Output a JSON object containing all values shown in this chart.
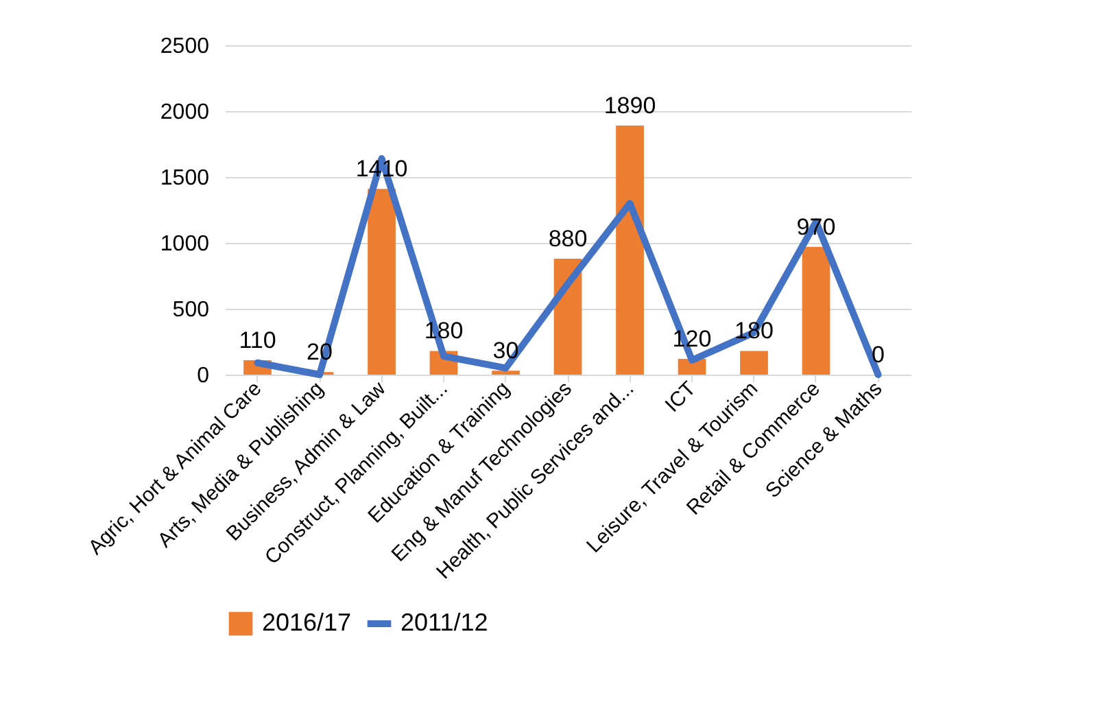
{
  "chart_data": {
    "type": "bar",
    "categories": [
      "Agric, Hort & Animal Care",
      "Arts, Media & Publishing",
      "Business, Admin & Law",
      "Construct, Planning,  Built...",
      "Education & Training",
      "Eng & Manuf Technologies",
      "Health, Public Services and...",
      "ICT",
      "Leisure, Travel & Tourism",
      "Retail & Commerce",
      "Science & Maths"
    ],
    "series": [
      {
        "name": "2016/17",
        "color": "#ed7d31",
        "values": [
          110,
          20,
          1410,
          180,
          30,
          880,
          1890,
          120,
          180,
          970,
          0
        ],
        "value_labels": [
          "110",
          "20",
          "1410",
          "180",
          "30",
          "880",
          "1890",
          "120",
          "180",
          "970",
          "0"
        ]
      },
      {
        "name": "2011/12",
        "type": "line",
        "color": "#4472c4",
        "values": [
          90,
          0,
          1640,
          140,
          50,
          690,
          1300,
          110,
          320,
          1160,
          0
        ]
      }
    ],
    "ylim": [
      0,
      2500
    ],
    "yticks": [
      0,
      500,
      1000,
      1500,
      2000,
      2500
    ],
    "grid": "y",
    "legend": "bottom"
  }
}
